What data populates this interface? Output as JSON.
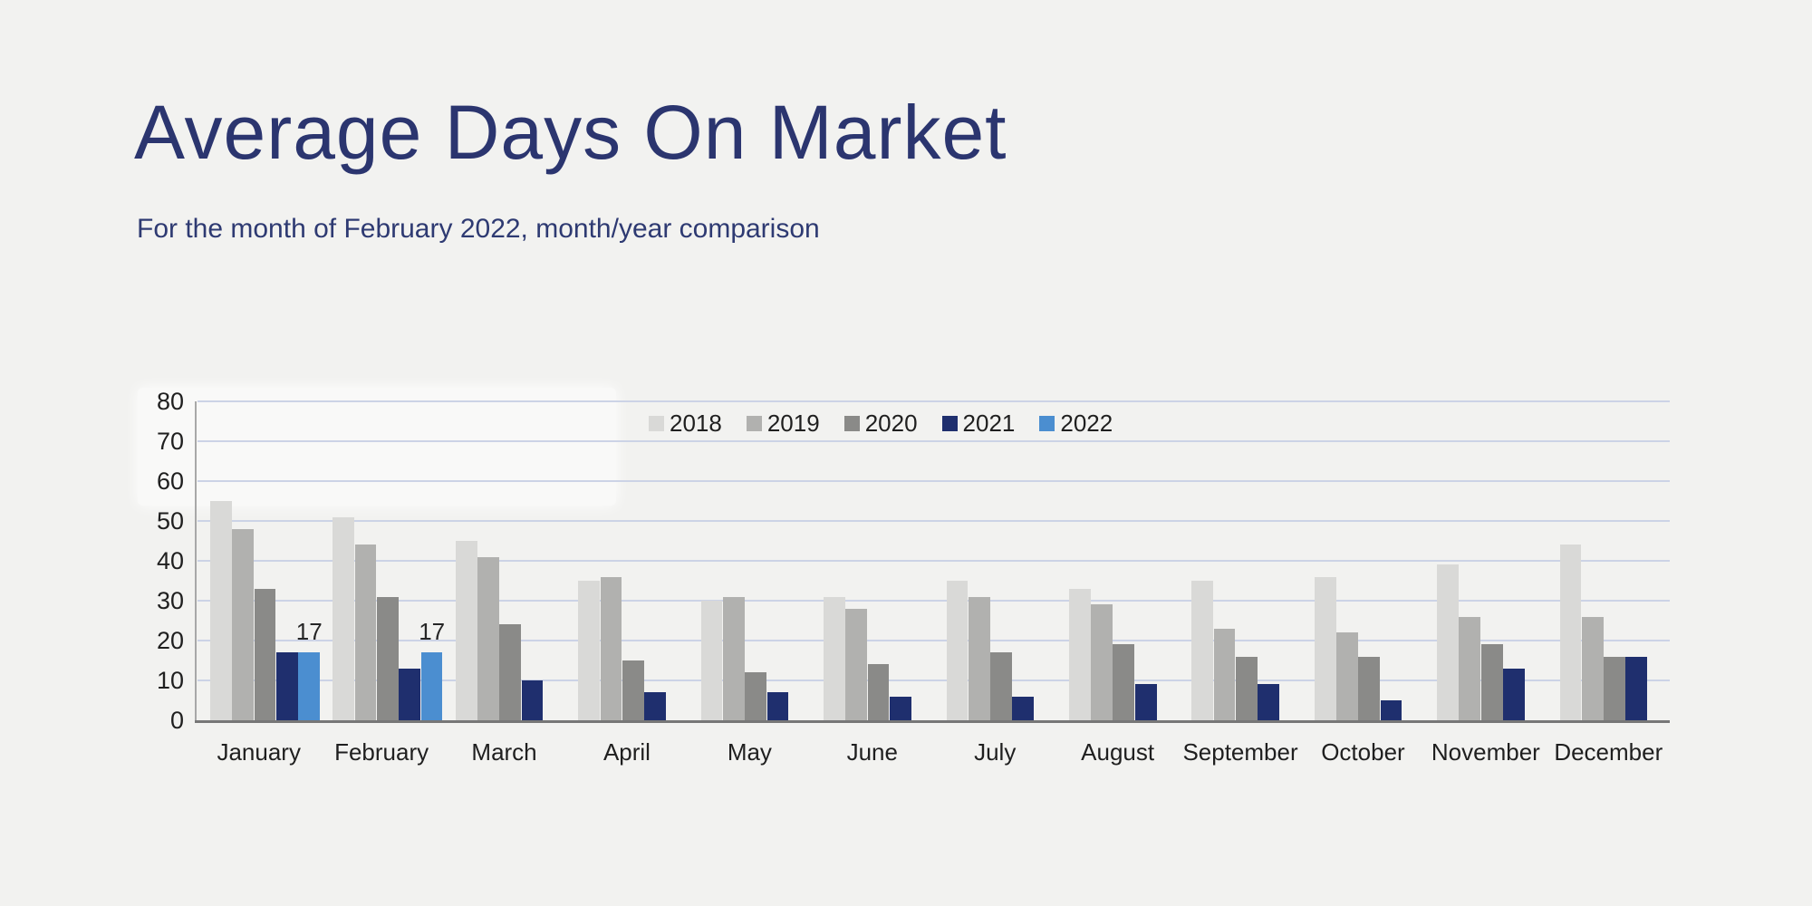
{
  "page": {
    "title": "Average Days On Market",
    "subtitle": "For the month of February 2022, month/year comparison"
  },
  "colors": {
    "background": "#f2f2f0",
    "title_text": "#2b356f",
    "subtitle_text": "#2e3a72",
    "axis_label_text": "#1f1f1f",
    "gridline": "#ccd3e6",
    "x_axis_line": "#777777",
    "y_axis_line": "#a8a8a8",
    "data_label_text": "#262626"
  },
  "chart_data": {
    "type": "bar",
    "title": "Average Days On Market",
    "subtitle": "For the month of February 2022, month/year comparison",
    "categories": [
      "January",
      "February",
      "March",
      "April",
      "May",
      "June",
      "July",
      "August",
      "September",
      "October",
      "November",
      "December"
    ],
    "series": [
      {
        "name": "2018",
        "color": "#d9d9d7",
        "values": [
          55,
          51,
          45,
          35,
          30,
          31,
          35,
          33,
          35,
          36,
          39,
          44
        ]
      },
      {
        "name": "2019",
        "color": "#b1b1af",
        "values": [
          48,
          44,
          41,
          36,
          31,
          28,
          31,
          29,
          23,
          22,
          26,
          26
        ]
      },
      {
        "name": "2020",
        "color": "#8a8a88",
        "values": [
          33,
          31,
          24,
          15,
          12,
          14,
          17,
          19,
          16,
          16,
          19,
          16
        ]
      },
      {
        "name": "2021",
        "color": "#1f2f6e",
        "values": [
          17,
          13,
          10,
          7,
          7,
          6,
          6,
          9,
          9,
          5,
          13,
          16
        ]
      },
      {
        "name": "2022",
        "color": "#4b8ed0",
        "values": [
          17,
          17,
          null,
          null,
          null,
          null,
          null,
          null,
          null,
          null,
          null,
          null
        ]
      }
    ],
    "ylabel": "",
    "xlabel": "",
    "ylim": [
      0,
      80
    ],
    "ytick_step": 10,
    "ytick_labels": [
      "0",
      "10",
      "20",
      "30",
      "40",
      "50",
      "60",
      "70",
      "80"
    ],
    "grid": true,
    "legend_position": "top-center",
    "legend_entries": [
      "2018",
      "2019",
      "2020",
      "2021",
      "2022"
    ],
    "data_labels": [
      {
        "series": "2022",
        "category": "January",
        "text": "17"
      },
      {
        "series": "2022",
        "category": "February",
        "text": "17"
      }
    ]
  }
}
